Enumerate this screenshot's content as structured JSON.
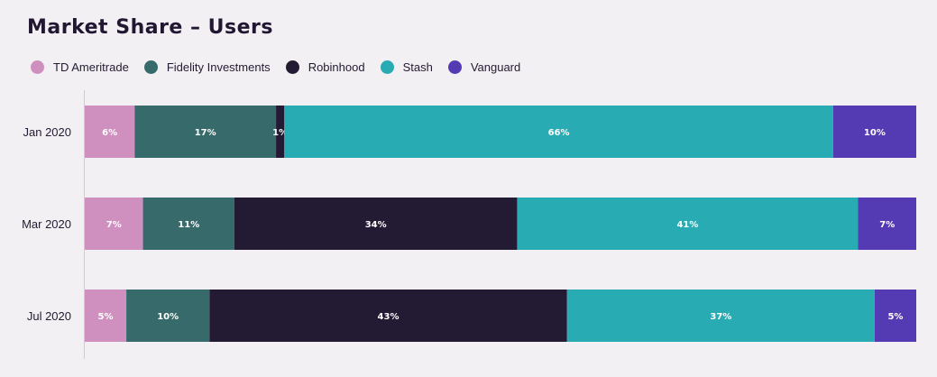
{
  "title": "Market Share – Users",
  "colors": {
    "td": "#cf8fbf",
    "fidelity": "#376b6b",
    "robinhood": "#231a33",
    "stash": "#29abb3",
    "vanguard": "#553bb3"
  },
  "legend": [
    {
      "key": "td",
      "label": "TD Ameritrade"
    },
    {
      "key": "fidelity",
      "label": "Fidelity Investments"
    },
    {
      "key": "robinhood",
      "label": "Robinhood"
    },
    {
      "key": "stash",
      "label": "Stash"
    },
    {
      "key": "vanguard",
      "label": "Vanguard"
    }
  ],
  "chart_data": {
    "type": "bar",
    "stacked": "percent",
    "orientation": "horizontal",
    "title": "Market Share – Users",
    "categories": [
      "Jan 2020",
      "Mar 2020",
      "Jul 2020"
    ],
    "series": [
      {
        "key": "td",
        "name": "TD Ameritrade",
        "values": [
          6,
          7,
          5
        ],
        "labels": [
          "6%",
          "7%",
          "5%"
        ]
      },
      {
        "key": "fidelity",
        "name": "Fidelity Investments",
        "values": [
          17,
          11,
          10
        ],
        "labels": [
          "17%",
          "11%",
          "10%"
        ]
      },
      {
        "key": "robinhood",
        "name": "Robinhood",
        "values": [
          1,
          34,
          43
        ],
        "labels": [
          "1%",
          "34%",
          "43%"
        ]
      },
      {
        "key": "stash",
        "name": "Stash",
        "values": [
          66,
          41,
          37
        ],
        "labels": [
          "66%",
          "41%",
          "37%"
        ]
      },
      {
        "key": "vanguard",
        "name": "Vanguard",
        "values": [
          10,
          7,
          5
        ],
        "labels": [
          "10%",
          "7%",
          "5%"
        ]
      }
    ],
    "xlim": [
      0,
      100
    ],
    "grid": false,
    "legend_position": "top-left"
  }
}
